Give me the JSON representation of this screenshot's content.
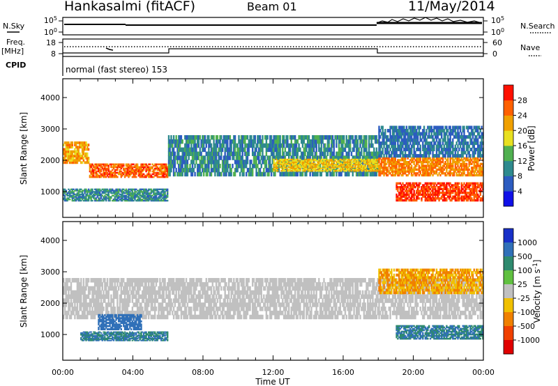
{
  "header": {
    "station": "Hankasalmi (fitACF)",
    "beam": "Beam 01",
    "date": "11/May/2014"
  },
  "top_panels": {
    "noise": {
      "left_label": "N.Sky",
      "right_label": "N.Search",
      "ticks": [
        "10^5",
        "10^0"
      ]
    },
    "freq": {
      "left_label_1": "Freq.",
      "left_label_2": "[MHz]",
      "left_ticks": [
        "18",
        "8"
      ],
      "right_label": "Nave",
      "right_ticks": [
        "60",
        "0"
      ]
    },
    "cpid": {
      "label": "CPID",
      "text": "normal (fast stereo) 153"
    }
  },
  "chart_data": [
    {
      "type": "heatmap",
      "name": "power-panel",
      "ylabel": "Slant Range [km]",
      "xlim": [
        "00:00",
        "24:00"
      ],
      "ylim": [
        180,
        4600
      ],
      "yticks": [
        1000,
        2000,
        3000,
        4000
      ],
      "colorbar": {
        "label": "Power [dB]",
        "ticks": [
          "4",
          "8",
          "12",
          "16",
          "20",
          "24",
          "28"
        ],
        "colors": [
          "#1010e8",
          "#2c5cc0",
          "#2e8a8e",
          "#50b050",
          "#e8e020",
          "#f0a000",
          "#ff6000",
          "#ff1000"
        ]
      },
      "bands": [
        {
          "t0": 0.0,
          "t1": 1.5,
          "r0": 1900,
          "r1": 2600,
          "value": 22
        },
        {
          "t0": 1.5,
          "t1": 6.0,
          "r0": 1450,
          "r1": 1900,
          "value": 26
        },
        {
          "t0": 0.0,
          "t1": 6.0,
          "r0": 700,
          "r1": 1100,
          "value": 10
        },
        {
          "t0": 6.0,
          "t1": 18.0,
          "r0": 1500,
          "r1": 2800,
          "value": 10
        },
        {
          "t0": 12.0,
          "t1": 18.0,
          "r0": 1650,
          "r1": 2050,
          "value": 20
        },
        {
          "t0": 18.0,
          "t1": 24.0,
          "r0": 1500,
          "r1": 2100,
          "value": 24
        },
        {
          "t0": 19.0,
          "t1": 24.0,
          "r0": 700,
          "r1": 1300,
          "value": 28
        },
        {
          "t0": 18.0,
          "t1": 24.0,
          "r0": 2100,
          "r1": 3100,
          "value": 8
        }
      ]
    },
    {
      "type": "heatmap",
      "name": "velocity-panel",
      "xlabel": "Time UT",
      "ylabel": "Slant Range [km]",
      "xlim": [
        "00:00",
        "24:00"
      ],
      "xticks": [
        "00:00",
        "04:00",
        "08:00",
        "12:00",
        "16:00",
        "20:00",
        "00:00"
      ],
      "ylim": [
        180,
        4600
      ],
      "yticks": [
        1000,
        2000,
        3000,
        4000
      ],
      "colorbar": {
        "label": "Velocity [m s^-1]",
        "ticks": [
          "1000",
          "500",
          "100",
          "25",
          "-25",
          "-100",
          "-500",
          "-1000"
        ],
        "colors": [
          "#1830c8",
          "#3070b8",
          "#2e8a6e",
          "#60c040",
          "#c0c0c0",
          "#f0c000",
          "#f08000",
          "#f04000",
          "#e00000"
        ]
      },
      "bands": [
        {
          "t0": 0.0,
          "t1": 24.0,
          "r0": 1500,
          "r1": 2800,
          "value": 0
        },
        {
          "t0": 2.0,
          "t1": 4.5,
          "r0": 1150,
          "r1": 1650,
          "value": 700
        },
        {
          "t0": 1.0,
          "t1": 6.0,
          "r0": 800,
          "r1": 1100,
          "value": 300
        },
        {
          "t0": 19.0,
          "t1": 24.0,
          "r0": 850,
          "r1": 1300,
          "value": 300
        },
        {
          "t0": 18.0,
          "t1": 24.0,
          "r0": 2300,
          "r1": 3100,
          "value": -60
        }
      ]
    }
  ]
}
